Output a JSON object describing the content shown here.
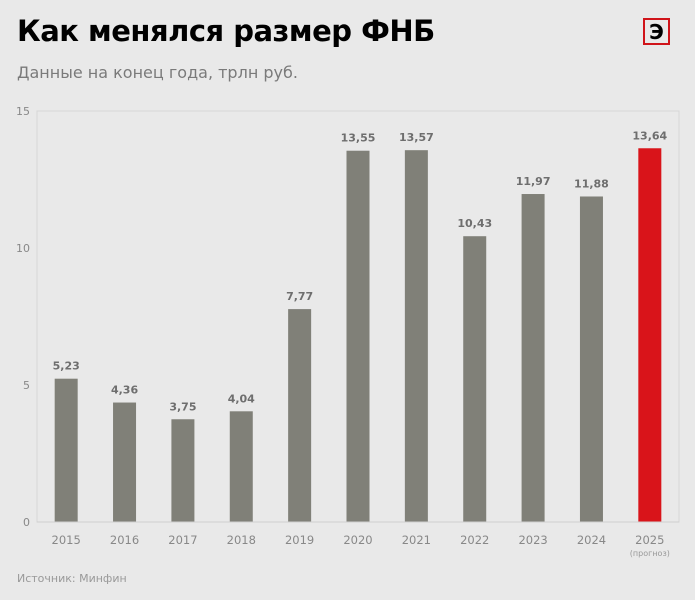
{
  "header": {
    "title": "Как менялся размер ФНБ",
    "subtitle": "Данные на конец года, трлн руб.",
    "logo": "Э"
  },
  "footer": {
    "source": "Источник: Минфин"
  },
  "chart_data": {
    "type": "bar",
    "categories": [
      "2015",
      "2016",
      "2017",
      "2018",
      "2019",
      "2020",
      "2021",
      "2022",
      "2023",
      "2024",
      "2025"
    ],
    "category_notes": {
      "2025": "(прогноз)"
    },
    "values": [
      5.23,
      4.36,
      3.75,
      4.04,
      7.77,
      13.55,
      13.57,
      10.43,
      11.97,
      11.88,
      13.64
    ],
    "data_labels": [
      "5,23",
      "4,36",
      "3,75",
      "4,04",
      "7,77",
      "13,55",
      "13,57",
      "10,43",
      "11,97",
      "11,88",
      "13,64"
    ],
    "ylim": [
      0,
      15
    ],
    "yticks": [
      0,
      5,
      10,
      15
    ],
    "colors": {
      "bar": "#808078",
      "highlight": "#d9141a"
    },
    "highlight_category": "2025",
    "grid": false
  }
}
